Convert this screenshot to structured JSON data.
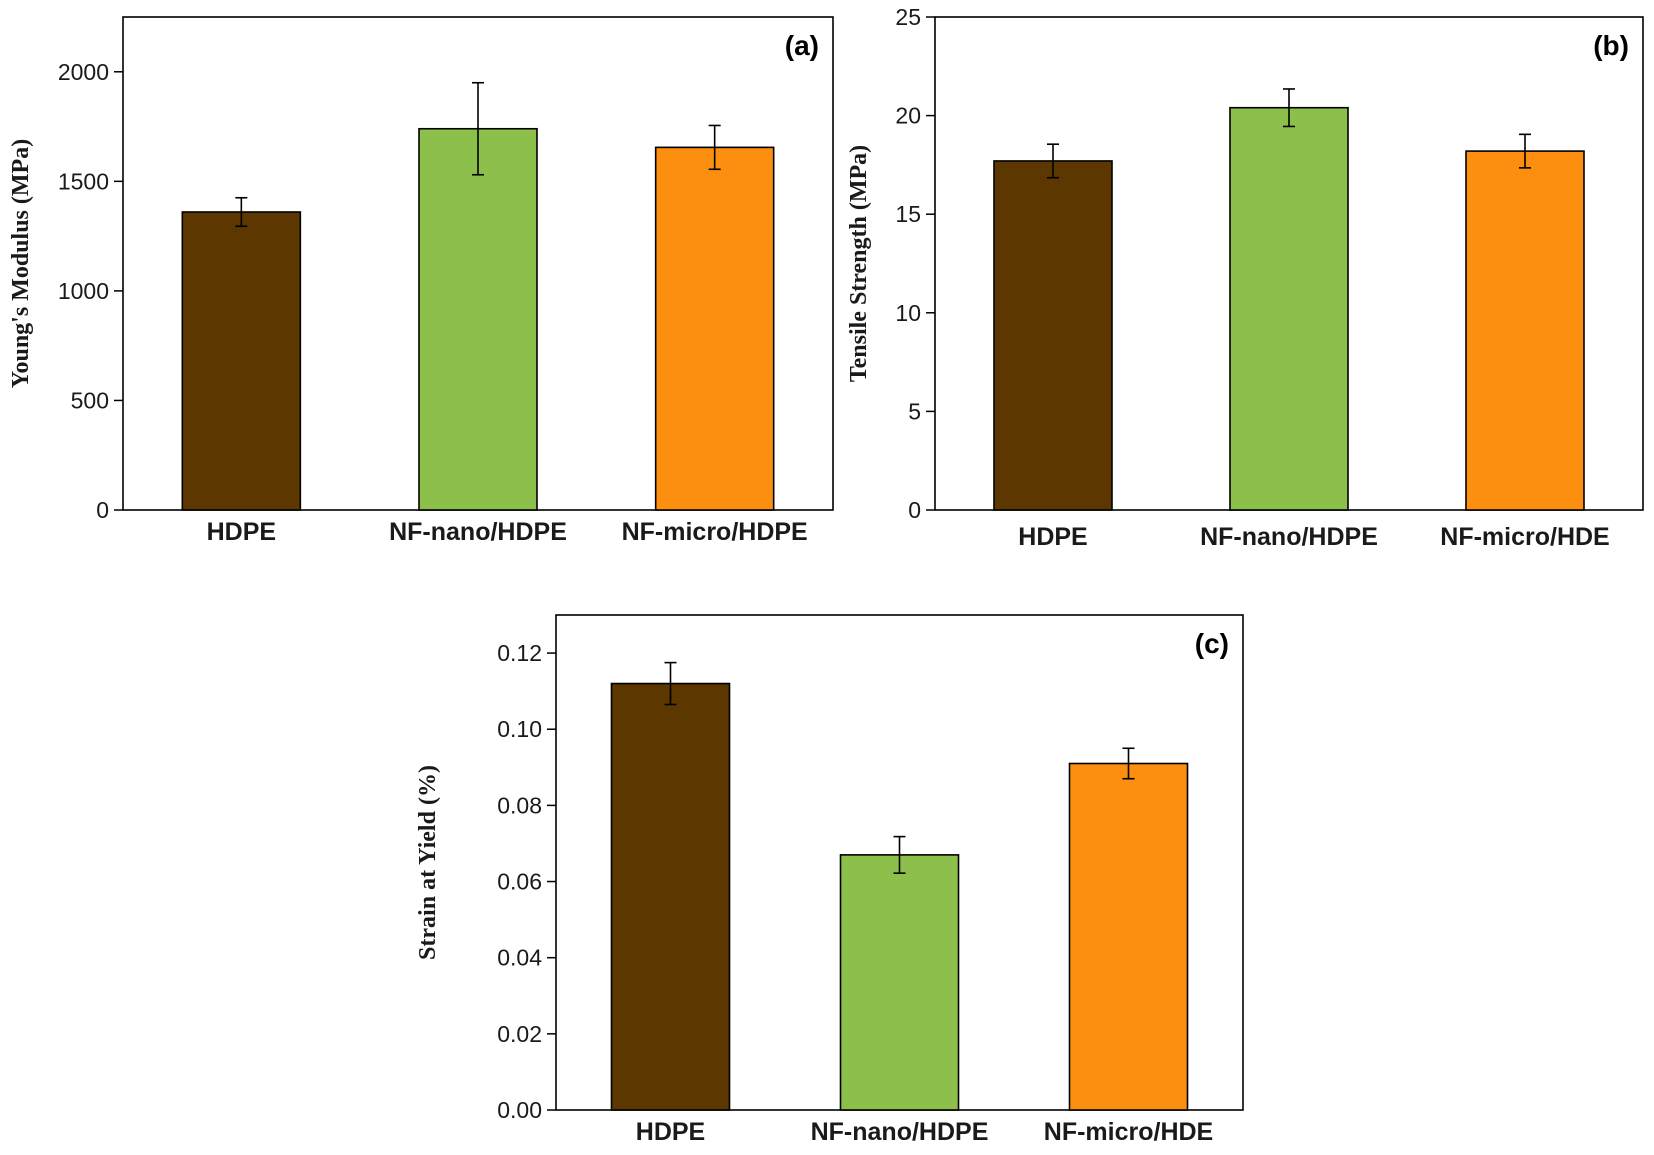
{
  "chart_data": [
    {
      "type": "bar",
      "panel_label": "(a)",
      "categories": [
        "HDPE",
        "NF-nano/HDPE",
        "NF-micro/HDPE"
      ],
      "values": [
        1360,
        1740,
        1655
      ],
      "errors": [
        65,
        210,
        100
      ],
      "colors": [
        "#5c3700",
        "#8cc04b",
        "#fc8f10"
      ],
      "ylabel": "Young's Modulus (MPa)",
      "xlabel": "",
      "ylim": [
        0,
        2250
      ],
      "yticks": [
        "0",
        "500",
        "1000",
        "1500",
        "2000"
      ],
      "ytick_values": [
        0,
        500,
        1000,
        1500,
        2000
      ],
      "grid": false
    },
    {
      "type": "bar",
      "panel_label": "(b)",
      "categories": [
        "HDPE",
        "NF-nano/HDPE",
        "NF-micro/HDE"
      ],
      "values": [
        17.7,
        20.4,
        18.2
      ],
      "errors": [
        0.85,
        0.95,
        0.85
      ],
      "colors": [
        "#5c3700",
        "#8cc04b",
        "#fc8f10"
      ],
      "ylabel": "Tensile Strength (MPa)",
      "xlabel": "",
      "ylim": [
        0,
        25
      ],
      "yticks": [
        "0",
        "5",
        "10",
        "15",
        "20",
        "25"
      ],
      "ytick_values": [
        0,
        5,
        10,
        15,
        20,
        25
      ],
      "grid": false
    },
    {
      "type": "bar",
      "panel_label": "(c)",
      "categories": [
        "HDPE",
        "NF-nano/HDPE",
        "NF-micro/HDE"
      ],
      "values": [
        0.112,
        0.067,
        0.091
      ],
      "errors": [
        0.0055,
        0.0048,
        0.004
      ],
      "colors": [
        "#5c3700",
        "#8cc04b",
        "#fc8f10"
      ],
      "ylabel": "Strain at Yield (%)",
      "xlabel": "",
      "ylim": [
        0,
        0.13
      ],
      "yticks": [
        "0.00",
        "0.02",
        "0.04",
        "0.06",
        "0.08",
        "0.10",
        "0.12"
      ],
      "ytick_values": [
        0,
        0.02,
        0.04,
        0.06,
        0.08,
        0.1,
        0.12
      ],
      "grid": false
    }
  ]
}
